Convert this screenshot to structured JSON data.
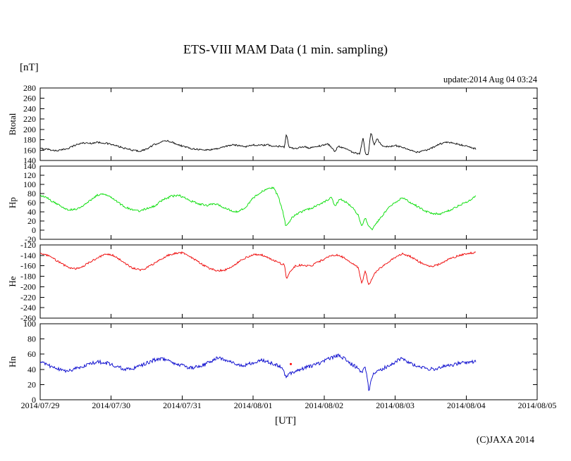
{
  "page": {
    "title": "ETS-VIII MAM Data (1 min. sampling)",
    "unit_label": "[nT]",
    "update_label": "update:2014 Aug 04 03:24",
    "xaxis_label": "[UT]",
    "copyright": "(C)JAXA 2014",
    "background": "#ffffff"
  },
  "chart_data": {
    "type": "line",
    "title": "ETS-VIII MAM Data (1 min. sampling)",
    "xlabel": "[UT]",
    "ylabel": "[nT]",
    "grid": false,
    "legend": "none",
    "x_range_days": [
      0,
      7
    ],
    "x_tick_labels": [
      "2014/07/29",
      "2014/07/30",
      "2014/07/31",
      "2014/08/01",
      "2014/08/02",
      "2014/08/03",
      "2014/08/04",
      "2014/08/05"
    ],
    "stray_marker": {
      "panel": "Hn",
      "t": 3.53,
      "v": 47,
      "color": "#ff0000"
    },
    "panels": [
      {
        "name": "Btotal",
        "color": "#000000",
        "ylim": [
          140,
          280
        ],
        "ytick_step": 20,
        "noise": 1.6,
        "points": [
          [
            0.0,
            163
          ],
          [
            0.1,
            162
          ],
          [
            0.2,
            159
          ],
          [
            0.3,
            160
          ],
          [
            0.4,
            164
          ],
          [
            0.5,
            170
          ],
          [
            0.6,
            174
          ],
          [
            0.7,
            173
          ],
          [
            0.8,
            175
          ],
          [
            0.9,
            174
          ],
          [
            1.0,
            171
          ],
          [
            1.1,
            167
          ],
          [
            1.2,
            163
          ],
          [
            1.3,
            160
          ],
          [
            1.4,
            158
          ],
          [
            1.5,
            162
          ],
          [
            1.6,
            170
          ],
          [
            1.7,
            176
          ],
          [
            1.8,
            178
          ],
          [
            1.9,
            173
          ],
          [
            2.0,
            168
          ],
          [
            2.1,
            164
          ],
          [
            2.2,
            162
          ],
          [
            2.3,
            160
          ],
          [
            2.4,
            161
          ],
          [
            2.5,
            163
          ],
          [
            2.6,
            167
          ],
          [
            2.7,
            170
          ],
          [
            2.8,
            169
          ],
          [
            2.9,
            167
          ],
          [
            3.0,
            170
          ],
          [
            3.1,
            169
          ],
          [
            3.2,
            170
          ],
          [
            3.3,
            167
          ],
          [
            3.4,
            168
          ],
          [
            3.44,
            166
          ],
          [
            3.47,
            193
          ],
          [
            3.5,
            166
          ],
          [
            3.6,
            162
          ],
          [
            3.7,
            167
          ],
          [
            3.8,
            164
          ],
          [
            3.9,
            167
          ],
          [
            4.0,
            170
          ],
          [
            4.05,
            172
          ],
          [
            4.1,
            166
          ],
          [
            4.15,
            157
          ],
          [
            4.2,
            168
          ],
          [
            4.3,
            163
          ],
          [
            4.4,
            156
          ],
          [
            4.5,
            152
          ],
          [
            4.55,
            184
          ],
          [
            4.58,
            152
          ],
          [
            4.62,
            150
          ],
          [
            4.66,
            197
          ],
          [
            4.7,
            170
          ],
          [
            4.75,
            183
          ],
          [
            4.8,
            170
          ],
          [
            4.9,
            166
          ],
          [
            5.0,
            169
          ],
          [
            5.1,
            165
          ],
          [
            5.2,
            160
          ],
          [
            5.3,
            156
          ],
          [
            5.4,
            158
          ],
          [
            5.5,
            163
          ],
          [
            5.6,
            170
          ],
          [
            5.7,
            175
          ],
          [
            5.8,
            174
          ],
          [
            5.9,
            171
          ],
          [
            6.0,
            168
          ],
          [
            6.1,
            164
          ],
          [
            6.14,
            162
          ]
        ]
      },
      {
        "name": "Hp",
        "color": "#00dd00",
        "ylim": [
          -20,
          140
        ],
        "ytick_step": 20,
        "noise": 2.2,
        "points": [
          [
            0.0,
            76
          ],
          [
            0.1,
            70
          ],
          [
            0.2,
            60
          ],
          [
            0.3,
            52
          ],
          [
            0.4,
            44
          ],
          [
            0.5,
            46
          ],
          [
            0.6,
            52
          ],
          [
            0.7,
            65
          ],
          [
            0.8,
            76
          ],
          [
            0.9,
            80
          ],
          [
            1.0,
            73
          ],
          [
            1.1,
            60
          ],
          [
            1.2,
            50
          ],
          [
            1.3,
            44
          ],
          [
            1.4,
            42
          ],
          [
            1.5,
            47
          ],
          [
            1.6,
            52
          ],
          [
            1.7,
            63
          ],
          [
            1.75,
            68
          ],
          [
            1.85,
            74
          ],
          [
            1.95,
            76
          ],
          [
            2.05,
            70
          ],
          [
            2.15,
            62
          ],
          [
            2.25,
            57
          ],
          [
            2.35,
            54
          ],
          [
            2.45,
            58
          ],
          [
            2.5,
            56
          ],
          [
            2.6,
            48
          ],
          [
            2.7,
            42
          ],
          [
            2.8,
            40
          ],
          [
            2.9,
            52
          ],
          [
            3.0,
            70
          ],
          [
            3.1,
            82
          ],
          [
            3.2,
            90
          ],
          [
            3.28,
            93
          ],
          [
            3.35,
            75
          ],
          [
            3.42,
            40
          ],
          [
            3.46,
            8
          ],
          [
            3.5,
            15
          ],
          [
            3.55,
            28
          ],
          [
            3.65,
            38
          ],
          [
            3.75,
            44
          ],
          [
            3.85,
            50
          ],
          [
            3.95,
            58
          ],
          [
            4.05,
            66
          ],
          [
            4.1,
            73
          ],
          [
            4.15,
            52
          ],
          [
            4.22,
            68
          ],
          [
            4.3,
            62
          ],
          [
            4.4,
            50
          ],
          [
            4.48,
            32
          ],
          [
            4.53,
            10
          ],
          [
            4.58,
            28
          ],
          [
            4.63,
            8
          ],
          [
            4.68,
            2
          ],
          [
            4.75,
            18
          ],
          [
            4.85,
            38
          ],
          [
            4.95,
            55
          ],
          [
            5.05,
            66
          ],
          [
            5.1,
            72
          ],
          [
            5.18,
            63
          ],
          [
            5.25,
            58
          ],
          [
            5.35,
            48
          ],
          [
            5.45,
            40
          ],
          [
            5.55,
            36
          ],
          [
            5.65,
            36
          ],
          [
            5.75,
            42
          ],
          [
            5.85,
            50
          ],
          [
            5.95,
            58
          ],
          [
            6.05,
            65
          ],
          [
            6.14,
            75
          ]
        ]
      },
      {
        "name": "He",
        "color": "#ee0000",
        "ylim": [
          -260,
          -120
        ],
        "ytick_step": 20,
        "noise": 1.8,
        "points": [
          [
            0.0,
            -136
          ],
          [
            0.1,
            -140
          ],
          [
            0.2,
            -147
          ],
          [
            0.3,
            -156
          ],
          [
            0.4,
            -163
          ],
          [
            0.5,
            -166
          ],
          [
            0.6,
            -161
          ],
          [
            0.7,
            -153
          ],
          [
            0.8,
            -145
          ],
          [
            0.9,
            -139
          ],
          [
            1.0,
            -138
          ],
          [
            1.1,
            -146
          ],
          [
            1.2,
            -156
          ],
          [
            1.3,
            -164
          ],
          [
            1.4,
            -168
          ],
          [
            1.5,
            -164
          ],
          [
            1.6,
            -156
          ],
          [
            1.7,
            -148
          ],
          [
            1.8,
            -140
          ],
          [
            1.9,
            -136
          ],
          [
            2.0,
            -135
          ],
          [
            2.1,
            -141
          ],
          [
            2.2,
            -150
          ],
          [
            2.3,
            -159
          ],
          [
            2.4,
            -166
          ],
          [
            2.5,
            -169
          ],
          [
            2.6,
            -168
          ],
          [
            2.7,
            -161
          ],
          [
            2.8,
            -152
          ],
          [
            2.9,
            -144
          ],
          [
            3.0,
            -139
          ],
          [
            3.1,
            -138
          ],
          [
            3.2,
            -143
          ],
          [
            3.3,
            -150
          ],
          [
            3.4,
            -156
          ],
          [
            3.44,
            -158
          ],
          [
            3.47,
            -186
          ],
          [
            3.52,
            -170
          ],
          [
            3.6,
            -160
          ],
          [
            3.7,
            -158
          ],
          [
            3.8,
            -161
          ],
          [
            3.9,
            -154
          ],
          [
            4.0,
            -147
          ],
          [
            4.1,
            -141
          ],
          [
            4.2,
            -139
          ],
          [
            4.3,
            -146
          ],
          [
            4.4,
            -156
          ],
          [
            4.48,
            -163
          ],
          [
            4.53,
            -195
          ],
          [
            4.58,
            -170
          ],
          [
            4.63,
            -198
          ],
          [
            4.68,
            -182
          ],
          [
            4.75,
            -168
          ],
          [
            4.85,
            -158
          ],
          [
            4.95,
            -148
          ],
          [
            5.05,
            -140
          ],
          [
            5.1,
            -137
          ],
          [
            5.2,
            -141
          ],
          [
            5.3,
            -149
          ],
          [
            5.4,
            -157
          ],
          [
            5.5,
            -161
          ],
          [
            5.6,
            -158
          ],
          [
            5.7,
            -151
          ],
          [
            5.8,
            -145
          ],
          [
            5.9,
            -140
          ],
          [
            6.0,
            -137
          ],
          [
            6.1,
            -135
          ],
          [
            6.14,
            -134
          ]
        ]
      },
      {
        "name": "Hn",
        "color": "#0000cc",
        "ylim": [
          0,
          100
        ],
        "ytick_step": 20,
        "noise": 2.4,
        "points": [
          [
            0.0,
            49
          ],
          [
            0.1,
            46
          ],
          [
            0.2,
            42
          ],
          [
            0.3,
            39
          ],
          [
            0.4,
            38
          ],
          [
            0.5,
            41
          ],
          [
            0.6,
            44
          ],
          [
            0.7,
            47
          ],
          [
            0.8,
            50
          ],
          [
            0.9,
            49
          ],
          [
            1.0,
            47
          ],
          [
            1.1,
            43
          ],
          [
            1.2,
            40
          ],
          [
            1.3,
            41
          ],
          [
            1.4,
            44
          ],
          [
            1.5,
            48
          ],
          [
            1.6,
            52
          ],
          [
            1.7,
            54
          ],
          [
            1.8,
            52
          ],
          [
            1.9,
            48
          ],
          [
            2.0,
            45
          ],
          [
            2.1,
            42
          ],
          [
            2.2,
            43
          ],
          [
            2.3,
            46
          ],
          [
            2.4,
            51
          ],
          [
            2.5,
            55
          ],
          [
            2.6,
            53
          ],
          [
            2.7,
            49
          ],
          [
            2.8,
            45
          ],
          [
            2.9,
            46
          ],
          [
            3.0,
            49
          ],
          [
            3.1,
            52
          ],
          [
            3.2,
            50
          ],
          [
            3.3,
            47
          ],
          [
            3.4,
            43
          ],
          [
            3.46,
            30
          ],
          [
            3.52,
            34
          ],
          [
            3.6,
            38
          ],
          [
            3.7,
            41
          ],
          [
            3.8,
            44
          ],
          [
            3.9,
            47
          ],
          [
            4.0,
            51
          ],
          [
            4.1,
            55
          ],
          [
            4.2,
            58
          ],
          [
            4.3,
            53
          ],
          [
            4.4,
            46
          ],
          [
            4.48,
            41
          ],
          [
            4.53,
            36
          ],
          [
            4.58,
            43
          ],
          [
            4.63,
            12
          ],
          [
            4.68,
            32
          ],
          [
            4.75,
            37
          ],
          [
            4.85,
            42
          ],
          [
            4.95,
            47
          ],
          [
            5.05,
            52
          ],
          [
            5.1,
            55
          ],
          [
            5.18,
            50
          ],
          [
            5.25,
            47
          ],
          [
            5.35,
            43
          ],
          [
            5.45,
            41
          ],
          [
            5.55,
            40
          ],
          [
            5.65,
            43
          ],
          [
            5.75,
            45
          ],
          [
            5.85,
            47
          ],
          [
            5.95,
            49
          ],
          [
            6.05,
            50
          ],
          [
            6.14,
            50
          ]
        ]
      }
    ]
  }
}
